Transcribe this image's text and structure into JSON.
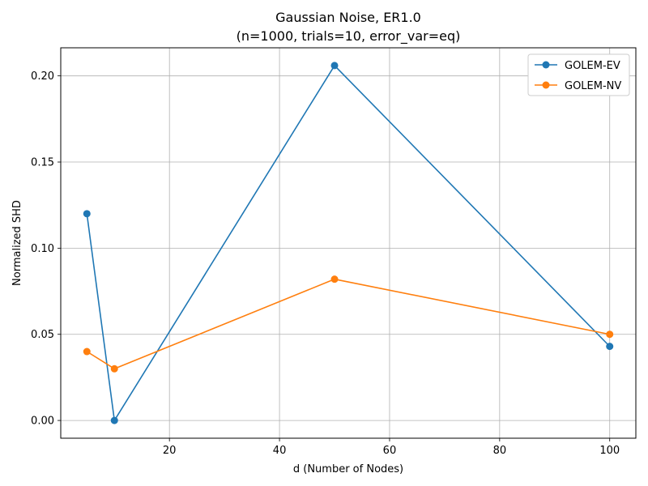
{
  "chart_data": {
    "type": "line",
    "title": "Gaussian Noise, ER1.0",
    "subtitle": "(n=1000, trials=10, error_var=eq)",
    "xlabel": "d (Number of Nodes)",
    "ylabel": "Normalized SHD",
    "x": [
      5,
      10,
      50,
      100
    ],
    "xlim": [
      0.25,
      104.75
    ],
    "ylim": [
      -0.0103,
      0.2163
    ],
    "xticks": [
      20,
      40,
      60,
      80,
      100
    ],
    "yticks": [
      0.0,
      0.05,
      0.1,
      0.15,
      0.2
    ],
    "xtick_labels": [
      "20",
      "40",
      "60",
      "80",
      "100"
    ],
    "ytick_labels": [
      "0.00",
      "0.05",
      "0.10",
      "0.15",
      "0.20"
    ],
    "grid": true,
    "legend_position": "top-right",
    "series": [
      {
        "name": "GOLEM-EV",
        "color": "#1f77b4",
        "values": [
          0.12,
          0.0,
          0.206,
          0.043
        ]
      },
      {
        "name": "GOLEM-NV",
        "color": "#ff7f0e",
        "values": [
          0.04,
          0.03,
          0.082,
          0.05
        ]
      }
    ]
  }
}
